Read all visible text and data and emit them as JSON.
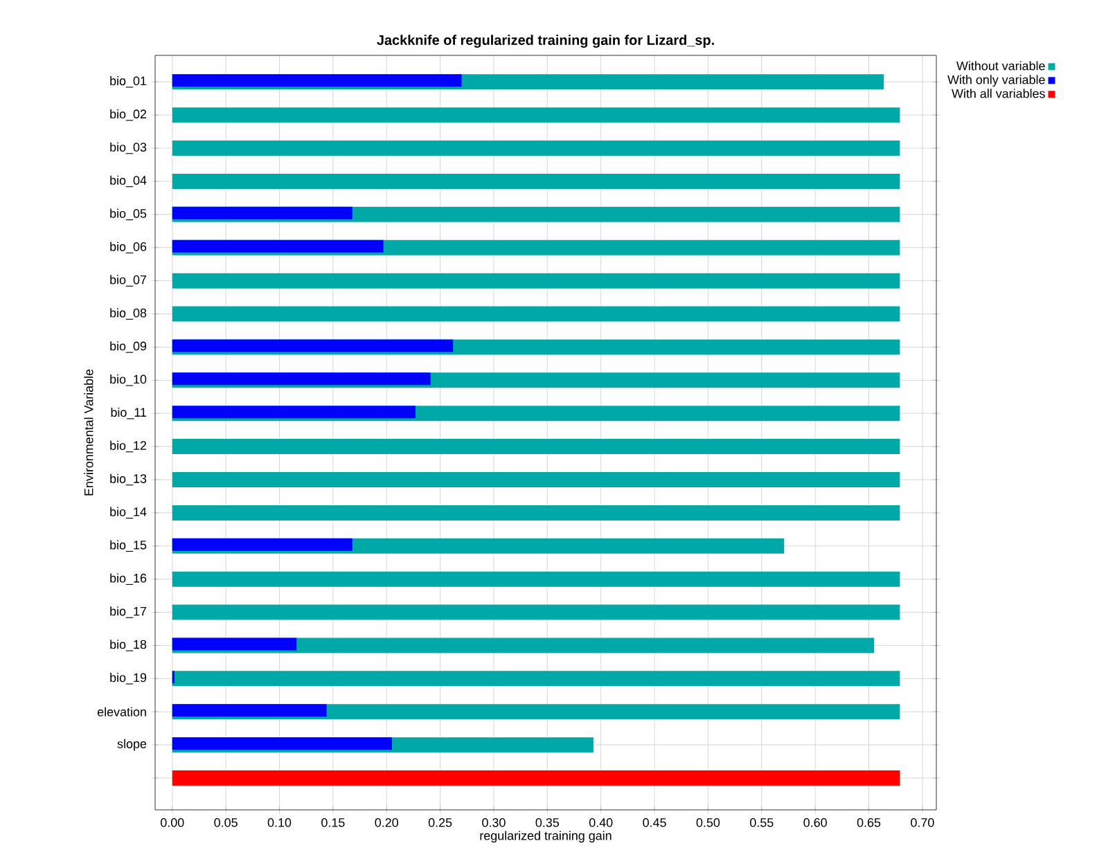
{
  "chart_data": {
    "type": "bar",
    "orientation": "horizontal",
    "title": "Jackknife of regularized training gain for Lizard_sp.",
    "xlabel": "regularized training gain",
    "ylabel": "Environmental Variable",
    "categories": [
      "bio_01",
      "bio_02",
      "bio_03",
      "bio_04",
      "bio_05",
      "bio_06",
      "bio_07",
      "bio_08",
      "bio_09",
      "bio_10",
      "bio_11",
      "bio_12",
      "bio_13",
      "bio_14",
      "bio_15",
      "bio_16",
      "bio_17",
      "bio_18",
      "bio_19",
      "elevation",
      "slope",
      null
    ],
    "series": [
      {
        "name": "Without variable",
        "color": "#00a8a8",
        "values": [
          0.664,
          0.679,
          0.679,
          0.679,
          0.679,
          0.679,
          0.679,
          0.679,
          0.679,
          0.679,
          0.679,
          0.679,
          0.679,
          0.679,
          0.571,
          0.679,
          0.679,
          0.655,
          0.679,
          0.679,
          0.393,
          null
        ]
      },
      {
        "name": "With only variable",
        "color": "#0000ff",
        "values": [
          0.27,
          0,
          0,
          0,
          0.168,
          0.197,
          0,
          0,
          0.262,
          0.241,
          0.227,
          0,
          0,
          0,
          0.168,
          0,
          0,
          0.116,
          0.002,
          0.144,
          0.205,
          null
        ]
      },
      {
        "name": "With all variables",
        "color": "#ff0000",
        "values": [
          null,
          null,
          null,
          null,
          null,
          null,
          null,
          null,
          null,
          null,
          null,
          null,
          null,
          null,
          null,
          null,
          null,
          null,
          null,
          null,
          null,
          0.679
        ]
      }
    ],
    "xlim": [
      -0.016,
      0.713
    ],
    "xticks": [
      {
        "value": 0,
        "label": "0.00"
      },
      {
        "value": 0.05,
        "label": "0.05"
      },
      {
        "value": 0.1,
        "label": "0.10"
      },
      {
        "value": 0.15,
        "label": "0.15"
      },
      {
        "value": 0.2,
        "label": "0.20"
      },
      {
        "value": 0.25,
        "label": "0.25"
      },
      {
        "value": 0.3,
        "label": "0.30"
      },
      {
        "value": 0.35,
        "label": "0.35"
      },
      {
        "value": 0.4,
        "label": "0.40"
      },
      {
        "value": 0.45,
        "label": "0.45"
      },
      {
        "value": 0.5,
        "label": "0.50"
      },
      {
        "value": 0.55,
        "label": "0.55"
      },
      {
        "value": 0.6,
        "label": "0.60"
      },
      {
        "value": 0.65,
        "label": "0.65"
      },
      {
        "value": 0.7,
        "label": "0.70"
      }
    ],
    "grid": true,
    "legend": "top right"
  }
}
